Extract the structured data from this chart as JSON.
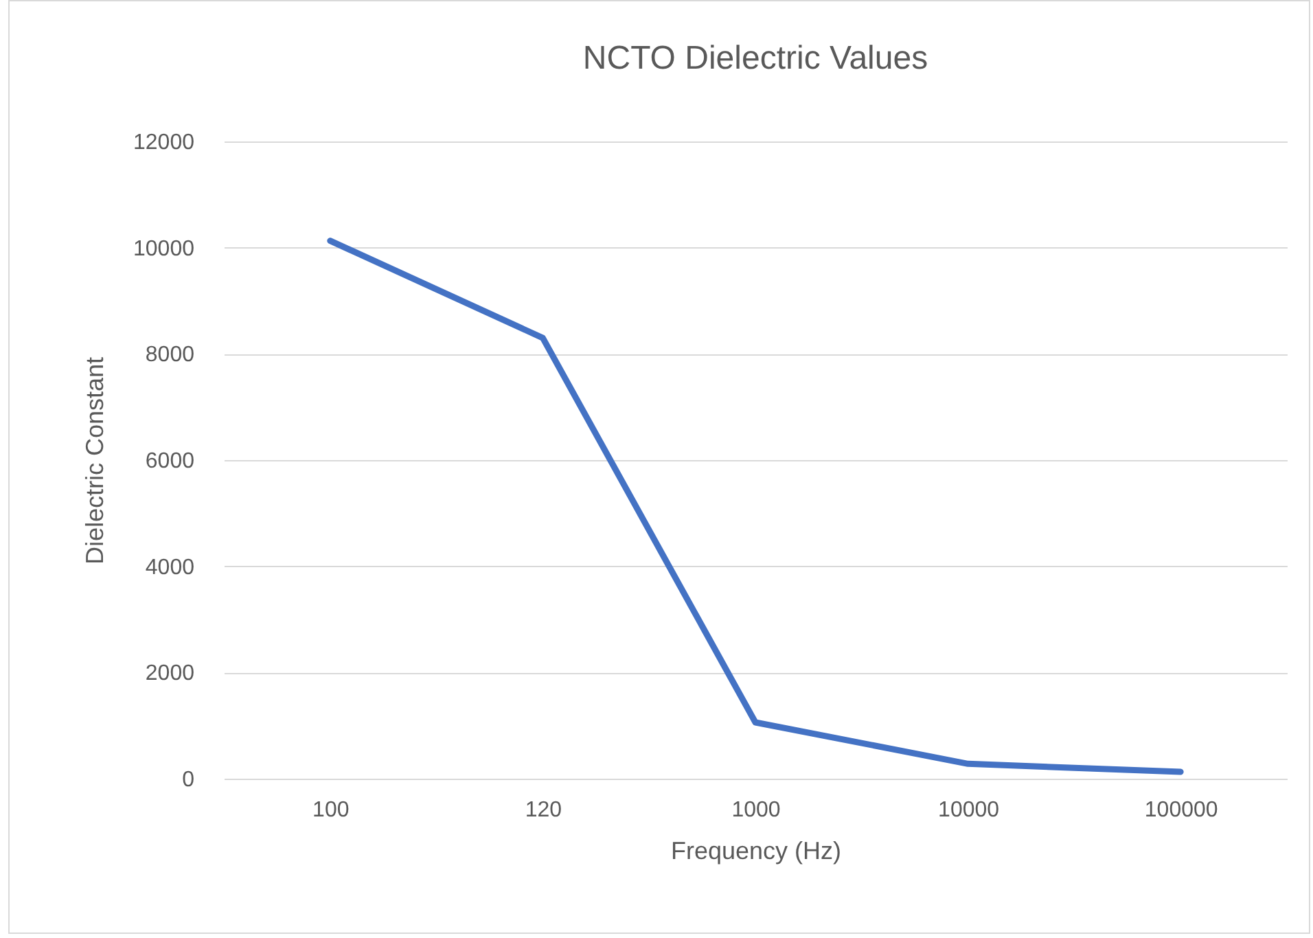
{
  "chart_data": {
    "type": "line",
    "title": "NCTO Dielectric Values",
    "xlabel": "Frequency (Hz)",
    "ylabel": "Dielectric Constant",
    "categories": [
      "100",
      "120",
      "1000",
      "10000",
      "100000"
    ],
    "series": [
      {
        "color": "#4472c4",
        "values": [
          10130,
          8300,
          1060,
          280,
          130
        ]
      }
    ],
    "ylim": [
      0,
      12000
    ],
    "yticks": [
      0,
      2000,
      4000,
      6000,
      8000,
      10000,
      12000
    ],
    "grid": "y",
    "legend": false,
    "marker": "none",
    "line_style": "solid"
  }
}
